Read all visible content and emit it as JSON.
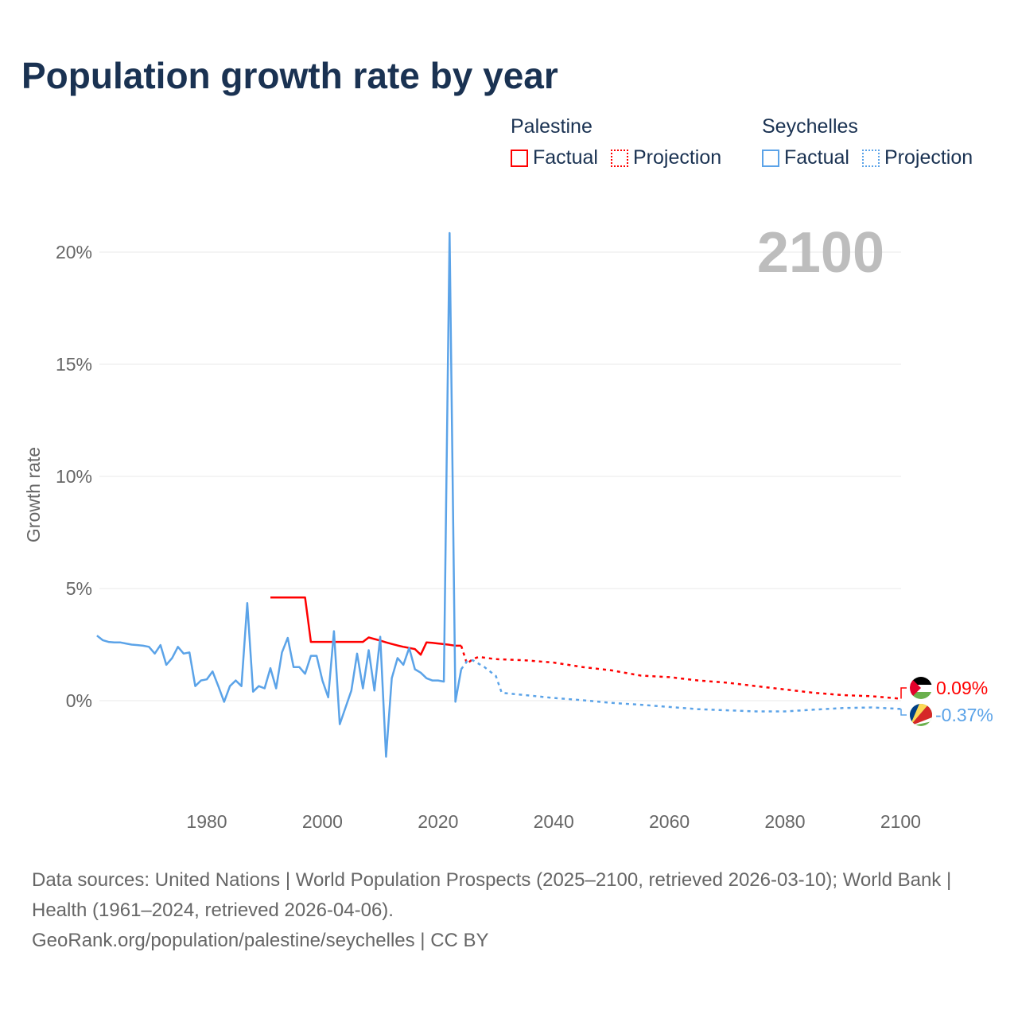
{
  "chart_data": {
    "type": "line",
    "title": "Population growth rate by year",
    "xlabel": "",
    "ylabel": "Growth rate",
    "xlim": [
      1961,
      2100
    ],
    "ylim": [
      -4.5,
      21
    ],
    "x_ticks": [
      "1980",
      "2000",
      "2020",
      "2040",
      "2060",
      "2080",
      "2100"
    ],
    "x_tick_values": [
      1980,
      2000,
      2020,
      2040,
      2060,
      2080,
      2100
    ],
    "y_ticks": [
      "0%",
      "5%",
      "10%",
      "15%",
      "20%"
    ],
    "y_tick_values": [
      0,
      5,
      10,
      15,
      20
    ],
    "grid": true,
    "year_watermark": "2100",
    "legend": {
      "groups": [
        {
          "name": "Palestine",
          "factual": "Factual",
          "projection": "Projection",
          "color": "#ff0000"
        },
        {
          "name": "Seychelles",
          "factual": "Factual",
          "projection": "Projection",
          "color": "#5ba3e8"
        }
      ],
      "placement": "top-right"
    },
    "series": [
      {
        "name": "Palestine",
        "color": "#ff0000",
        "factual": {
          "x": [
            1991,
            1992,
            1993,
            1994,
            1995,
            1996,
            1997,
            1998,
            1999,
            2000,
            2001,
            2002,
            2003,
            2004,
            2005,
            2006,
            2007,
            2008,
            2009,
            2010,
            2011,
            2012,
            2013,
            2014,
            2015,
            2016,
            2017,
            2018,
            2019,
            2020,
            2021,
            2022,
            2023,
            2024
          ],
          "y": [
            4.6,
            4.6,
            4.6,
            4.6,
            4.6,
            4.6,
            4.6,
            2.62,
            2.62,
            2.62,
            2.62,
            2.62,
            2.62,
            2.62,
            2.62,
            2.62,
            2.62,
            2.82,
            2.75,
            2.68,
            2.6,
            2.53,
            2.46,
            2.4,
            2.35,
            2.3,
            2.05,
            2.6,
            2.58,
            2.55,
            2.52,
            2.49,
            2.45,
            2.45
          ]
        },
        "projection": {
          "x": [
            2024,
            2025,
            2026,
            2027,
            2030,
            2035,
            2040,
            2045,
            2050,
            2055,
            2060,
            2065,
            2070,
            2075,
            2080,
            2085,
            2090,
            2095,
            2100
          ],
          "y": [
            2.45,
            1.65,
            1.85,
            1.95,
            1.85,
            1.8,
            1.7,
            1.5,
            1.35,
            1.12,
            1.05,
            0.9,
            0.8,
            0.65,
            0.5,
            0.35,
            0.25,
            0.2,
            0.09
          ]
        },
        "end_label": "0.09%"
      },
      {
        "name": "Seychelles",
        "color": "#5ba3e8",
        "factual": {
          "x": [
            1961,
            1962,
            1963,
            1964,
            1965,
            1966,
            1967,
            1968,
            1969,
            1970,
            1971,
            1972,
            1973,
            1974,
            1975,
            1976,
            1977,
            1978,
            1979,
            1980,
            1981,
            1982,
            1983,
            1984,
            1985,
            1986,
            1987,
            1988,
            1989,
            1990,
            1991,
            1992,
            1993,
            1994,
            1995,
            1996,
            1997,
            1998,
            1999,
            2000,
            2001,
            2002,
            2003,
            2004,
            2005,
            2006,
            2007,
            2008,
            2009,
            2010,
            2011,
            2012,
            2013,
            2014,
            2015,
            2016,
            2017,
            2018,
            2019,
            2020,
            2021,
            2022,
            2023,
            2024
          ],
          "y": [
            2.9,
            2.7,
            2.62,
            2.6,
            2.6,
            2.55,
            2.5,
            2.48,
            2.45,
            2.4,
            2.1,
            2.48,
            1.6,
            1.9,
            2.4,
            2.1,
            2.15,
            0.65,
            0.9,
            0.95,
            1.3,
            0.65,
            -0.05,
            0.65,
            0.9,
            0.65,
            4.35,
            0.4,
            0.65,
            0.55,
            1.45,
            0.55,
            2.15,
            2.8,
            1.5,
            1.5,
            1.2,
            2.0,
            2.0,
            0.9,
            0.15,
            3.1,
            -1.05,
            -0.3,
            0.45,
            2.1,
            0.55,
            2.25,
            0.45,
            2.85,
            -2.5,
            1.0,
            1.9,
            1.6,
            2.35,
            1.4,
            1.25,
            1.0,
            0.9,
            0.9,
            0.85,
            20.85,
            -0.05,
            1.4
          ]
        },
        "projection": {
          "x": [
            2024,
            2025,
            2026,
            2028,
            2030,
            2031,
            2035,
            2040,
            2045,
            2050,
            2055,
            2060,
            2065,
            2070,
            2075,
            2080,
            2085,
            2090,
            2095,
            2100
          ],
          "y": [
            1.4,
            1.75,
            1.8,
            1.5,
            1.1,
            0.35,
            0.25,
            0.12,
            0.02,
            -0.1,
            -0.18,
            -0.28,
            -0.38,
            -0.43,
            -0.48,
            -0.48,
            -0.4,
            -0.33,
            -0.3,
            -0.37
          ]
        },
        "end_label": "-0.37%"
      }
    ]
  },
  "footer": {
    "sources": "Data sources: United Nations | World Population Prospects (2025–2100, retrieved 2026-03-10); World Bank | Health (1961–2024, retrieved 2026-04-06).",
    "credit": "GeoRank.org/population/palestine/seychelles | CC BY"
  }
}
